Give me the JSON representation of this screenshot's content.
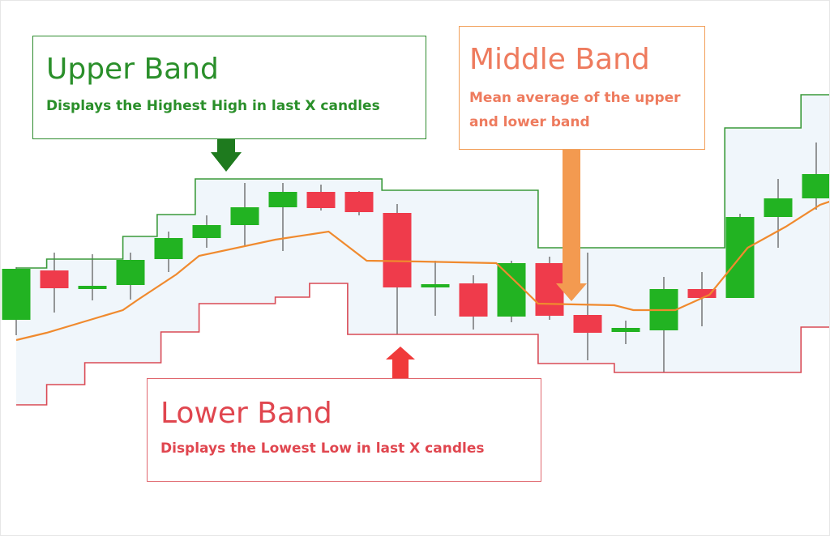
{
  "annotations": {
    "upper": {
      "title": "Upper Band",
      "subtitle": "Displays the Highest High in last X candles"
    },
    "middle": {
      "title": "Middle Band",
      "subtitle": "Mean average of the upper and lower band"
    },
    "lower": {
      "title": "Lower Band",
      "subtitle": "Displays the Lowest Low in last X candles"
    }
  },
  "colors": {
    "bullish": "#22b322",
    "bearish": "#ef3b4b",
    "upper_band": "#3a9a3a",
    "lower_band": "#d94a55",
    "middle_band": "#f08a2e",
    "channel_fill": "#f0f6fb",
    "arrow_upper": "#1e7a1e",
    "arrow_middle": "#f39a50",
    "arrow_lower": "#f03a3a"
  },
  "chart_data": {
    "type": "candlestick",
    "title": "",
    "xlabel": "",
    "ylabel": "",
    "xlim": [
      0,
      21.6
    ],
    "ylim": [
      0,
      662
    ],
    "grid": false,
    "candles": [
      {
        "open": 395,
        "high": 414,
        "low": 330,
        "close": 332
      },
      {
        "open": 334,
        "high": 386,
        "low": 312,
        "close": 356
      },
      {
        "open": 357,
        "high": 371,
        "low": 314,
        "close": 353
      },
      {
        "open": 352,
        "high": 370,
        "low": 312,
        "close": 321
      },
      {
        "open": 320,
        "high": 336,
        "low": 286,
        "close": 294
      },
      {
        "open": 294,
        "high": 306,
        "low": 266,
        "close": 278
      },
      {
        "open": 278,
        "high": 304,
        "low": 226,
        "close": 256
      },
      {
        "open": 256,
        "high": 310,
        "low": 226,
        "close": 237
      },
      {
        "open": 237,
        "high": 260,
        "low": 228,
        "close": 257
      },
      {
        "open": 237,
        "high": 266,
        "low": 236,
        "close": 262
      },
      {
        "open": 263,
        "high": 413,
        "low": 252,
        "close": 355
      },
      {
        "open": 355,
        "high": 390,
        "low": 322,
        "close": 351
      },
      {
        "open": 350,
        "high": 407,
        "low": 340,
        "close": 391
      },
      {
        "open": 391,
        "high": 398,
        "low": 322,
        "close": 325
      },
      {
        "open": 325,
        "high": 395,
        "low": 317,
        "close": 390
      },
      {
        "open": 389,
        "high": 445,
        "low": 312,
        "close": 411
      },
      {
        "open": 410,
        "high": 425,
        "low": 396,
        "close": 405
      },
      {
        "open": 408,
        "high": 460,
        "low": 342,
        "close": 357
      },
      {
        "open": 357,
        "high": 403,
        "low": 336,
        "close": 368
      },
      {
        "open": 368,
        "high": 368,
        "low": 264,
        "close": 268
      },
      {
        "open": 268,
        "high": 306,
        "low": 221,
        "close": 245
      },
      {
        "open": 245,
        "high": 259,
        "low": 176,
        "close": 215
      },
      {
        "open": 215,
        "high": 254,
        "low": 117,
        "close": 116
      }
    ],
    "upper_band": [
      {
        "x": 0,
        "y": 331
      },
      {
        "x": 0.8,
        "y": 331
      },
      {
        "x": 0.8,
        "y": 320
      },
      {
        "x": 2.8,
        "y": 320
      },
      {
        "x": 2.8,
        "y": 292
      },
      {
        "x": 3.7,
        "y": 292
      },
      {
        "x": 3.7,
        "y": 265
      },
      {
        "x": 4.7,
        "y": 265
      },
      {
        "x": 4.7,
        "y": 221
      },
      {
        "x": 9.6,
        "y": 221
      },
      {
        "x": 9.6,
        "y": 235
      },
      {
        "x": 13.7,
        "y": 235
      },
      {
        "x": 13.7,
        "y": 306
      },
      {
        "x": 18.6,
        "y": 306
      },
      {
        "x": 18.6,
        "y": 158
      },
      {
        "x": 20.6,
        "y": 158
      },
      {
        "x": 20.6,
        "y": 117
      },
      {
        "x": 21.6,
        "y": 117
      }
    ],
    "lower_band": [
      {
        "x": 0,
        "y": 500
      },
      {
        "x": 0.8,
        "y": 500
      },
      {
        "x": 0.8,
        "y": 475
      },
      {
        "x": 1.8,
        "y": 475
      },
      {
        "x": 1.8,
        "y": 448
      },
      {
        "x": 3.8,
        "y": 448
      },
      {
        "x": 3.8,
        "y": 410
      },
      {
        "x": 4.8,
        "y": 410
      },
      {
        "x": 4.8,
        "y": 375
      },
      {
        "x": 6.8,
        "y": 375
      },
      {
        "x": 6.8,
        "y": 367
      },
      {
        "x": 7.7,
        "y": 367
      },
      {
        "x": 7.7,
        "y": 350
      },
      {
        "x": 8.7,
        "y": 350
      },
      {
        "x": 8.7,
        "y": 413
      },
      {
        "x": 13.7,
        "y": 413
      },
      {
        "x": 13.7,
        "y": 449
      },
      {
        "x": 15.7,
        "y": 449
      },
      {
        "x": 15.7,
        "y": 460
      },
      {
        "x": 20.6,
        "y": 460
      },
      {
        "x": 20.6,
        "y": 404
      },
      {
        "x": 21.6,
        "y": 404
      }
    ],
    "middle_band": [
      {
        "x": 0,
        "y": 420
      },
      {
        "x": 0.8,
        "y": 411
      },
      {
        "x": 1.8,
        "y": 397
      },
      {
        "x": 2.8,
        "y": 383
      },
      {
        "x": 3.2,
        "y": 370
      },
      {
        "x": 4.2,
        "y": 339
      },
      {
        "x": 4.8,
        "y": 316
      },
      {
        "x": 6.8,
        "y": 296
      },
      {
        "x": 8.2,
        "y": 286
      },
      {
        "x": 9.2,
        "y": 322
      },
      {
        "x": 10.6,
        "y": 323
      },
      {
        "x": 12.6,
        "y": 325
      },
      {
        "x": 13.2,
        "y": 352
      },
      {
        "x": 13.7,
        "y": 375
      },
      {
        "x": 15.7,
        "y": 377
      },
      {
        "x": 16.2,
        "y": 383
      },
      {
        "x": 17.3,
        "y": 383
      },
      {
        "x": 18.2,
        "y": 364
      },
      {
        "x": 19.2,
        "y": 306
      },
      {
        "x": 20.2,
        "y": 280
      },
      {
        "x": 21.1,
        "y": 253
      },
      {
        "x": 21.6,
        "y": 245
      }
    ]
  }
}
